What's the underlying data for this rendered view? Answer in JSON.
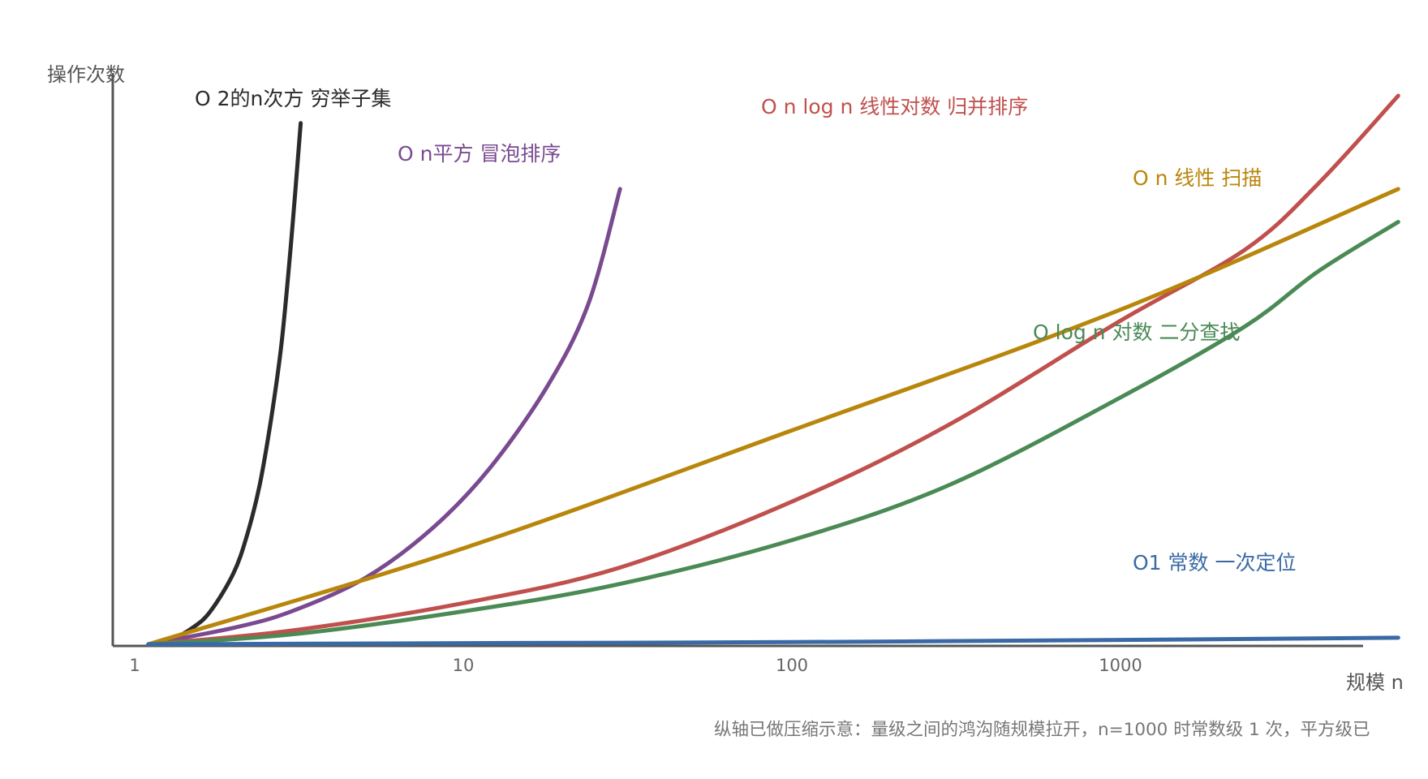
{
  "chart_data": {
    "type": "line",
    "title": "",
    "xlabel": "规模 n",
    "ylabel": "操作次数",
    "x_scale": "log",
    "y_scale": "compressed",
    "xlim": [
      1,
      10000
    ],
    "ylim": [
      0,
      100
    ],
    "x_ticks": [
      "1",
      "10",
      "100",
      "1000"
    ],
    "x_tick_values": [
      1,
      10,
      100,
      1000
    ],
    "grid": false,
    "legend": "inline labels",
    "series": [
      {
        "name": "O 2的n次方 穷举子集",
        "color": "#2b2b2b",
        "x": [
          1.1,
          1.3,
          1.5,
          1.7,
          2.0,
          2.2,
          2.4,
          2.6,
          2.8,
          3.0,
          3.2
        ],
        "y": [
          0,
          1,
          3,
          6,
          13,
          20,
          29,
          41,
          55,
          74,
          95
        ]
      },
      {
        "name": "O n平方 冒泡排序",
        "color": "#7a4a90",
        "x": [
          1.1,
          2,
          3,
          5,
          8,
          12,
          18,
          24,
          30
        ],
        "y": [
          0,
          3,
          6,
          12,
          21,
          32,
          47,
          62,
          83
        ]
      },
      {
        "name": "O n log n 线性对数 归并排序",
        "color": "#c0504d",
        "x": [
          1.1,
          3,
          10,
          30,
          100,
          300,
          1000,
          2400,
          4000,
          7000
        ],
        "y": [
          0,
          2.5,
          7.5,
          14,
          26,
          40,
          59,
          72,
          84,
          100
        ]
      },
      {
        "name": "O n 线性 扫描",
        "color": "#b8860b",
        "x": [
          1.1,
          10,
          100,
          1000,
          7000
        ],
        "y": [
          0,
          17.5,
          39,
          61,
          83
        ]
      },
      {
        "name": "O log n 对数 二分查找",
        "color": "#4a8a55",
        "x": [
          1.1,
          3,
          10,
          30,
          100,
          300,
          1000,
          2400,
          4000,
          7000
        ],
        "y": [
          0,
          1.8,
          6,
          11,
          19,
          29,
          45,
          58,
          68,
          77
        ]
      },
      {
        "name": "O1 常数 一次定位",
        "color": "#3a6aa5",
        "x": [
          1.1,
          10,
          100,
          1000,
          7000
        ],
        "y": [
          0,
          0.2,
          0.4,
          0.8,
          1.2
        ]
      }
    ]
  },
  "note": "纵轴已做压缩示意：量级之间的鸿沟随规模拉开，n=1000 时常数级 1 次，平方级已"
}
